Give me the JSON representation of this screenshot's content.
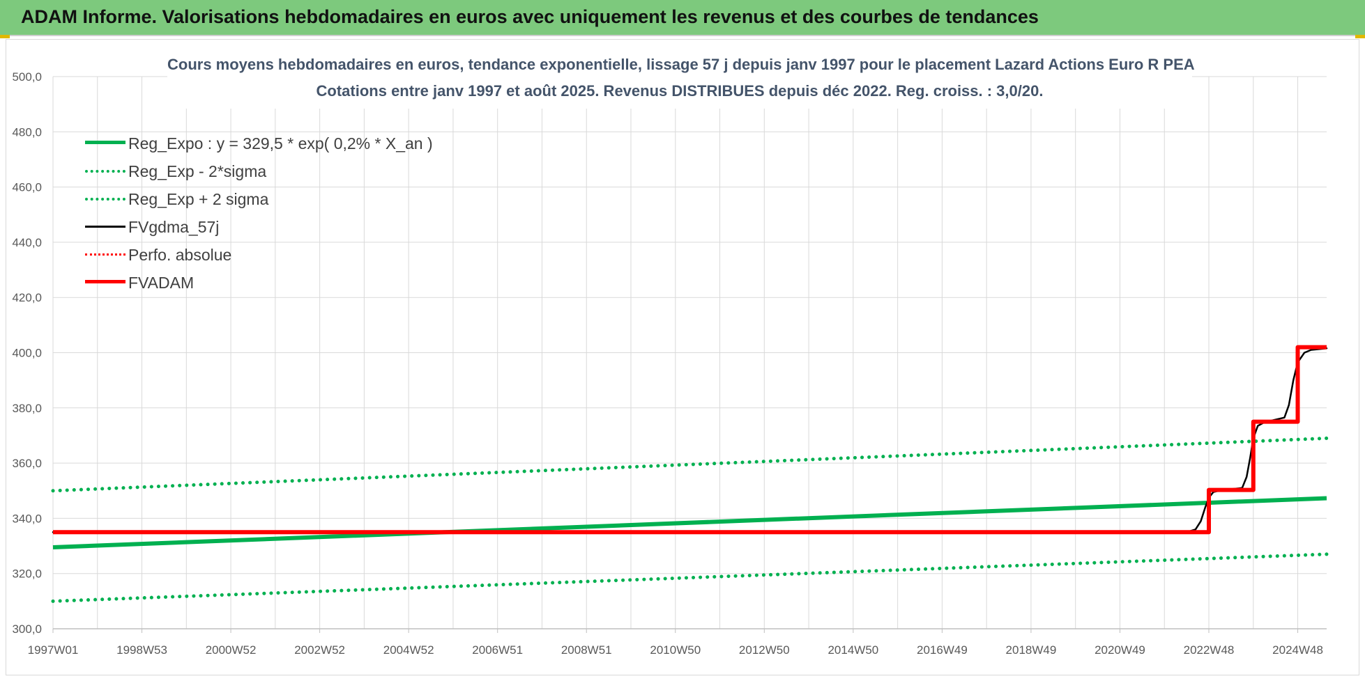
{
  "banner": {
    "title": "ADAM Informe. Valorisations hebdomadaires en euros avec uniquement les revenus et des courbes de tendances"
  },
  "colors": {
    "banner_bg": "#7dc97d",
    "reg_expo": "#00b050",
    "fvgdma": "#000000",
    "fvadam": "#ff0000",
    "perfo": "#ff0000",
    "grid": "#d9d9d9",
    "axis_text": "#595959",
    "title_text": "#44546a"
  },
  "chart_data": {
    "type": "line",
    "title_line1": "Cours moyens hebdomadaires en euros, tendance exponentielle, lissage 57 j depuis janv 1997 pour le placement Lazard Actions Euro R PEA",
    "title_line2": "Cotations entre janv 1997 et août 2025. Revenus DISTRIBUES depuis déc 2022. Reg. croiss. : 3,0/20.",
    "xlabel": "",
    "ylabel": "",
    "ylim": [
      300,
      500
    ],
    "yticks": [
      "500,0",
      "480,0",
      "460,0",
      "440,0",
      "420,0",
      "400,0",
      "380,0",
      "360,0",
      "340,0",
      "320,0",
      "300,0"
    ],
    "x_range": [
      1997.0,
      2025.65
    ],
    "xticks": [
      {
        "label": "1997W01",
        "x": 1997.0
      },
      {
        "label": "1998W53",
        "x": 1999.0
      },
      {
        "label": "2000W52",
        "x": 2001.0
      },
      {
        "label": "2002W52",
        "x": 2003.0
      },
      {
        "label": "2004W52",
        "x": 2005.0
      },
      {
        "label": "2006W51",
        "x": 2007.0
      },
      {
        "label": "2008W51",
        "x": 2009.0
      },
      {
        "label": "2010W50",
        "x": 2011.0
      },
      {
        "label": "2012W50",
        "x": 2013.0
      },
      {
        "label": "2014W50",
        "x": 2015.0
      },
      {
        "label": "2016W49",
        "x": 2017.0
      },
      {
        "label": "2018W49",
        "x": 2019.0
      },
      {
        "label": "2020W49",
        "x": 2021.0
      },
      {
        "label": "2022W48",
        "x": 2023.0
      },
      {
        "label": "2024W48",
        "x": 2025.0
      }
    ],
    "grid": true,
    "legend_position": "top-left",
    "series": [
      {
        "name": "Reg_Expo : y = 329,5 * exp( 0,2% *  X_an )",
        "style": "solid-thick",
        "color": "#00b050",
        "points": [
          [
            1997.0,
            329.5
          ],
          [
            2025.65,
            347.3
          ]
        ]
      },
      {
        "name": "Reg_Exp - 2*sigma",
        "style": "dotted",
        "color": "#00b050",
        "points": [
          [
            1997.0,
            310.0
          ],
          [
            2025.65,
            327.0
          ]
        ]
      },
      {
        "name": "Reg_Exp + 2 sigma",
        "style": "dotted",
        "color": "#00b050",
        "points": [
          [
            1997.0,
            350.0
          ],
          [
            2025.65,
            369.0
          ]
        ]
      },
      {
        "name": "FVgdma_57j",
        "style": "solid",
        "color": "#000000",
        "points": [
          [
            1997.0,
            335.0
          ],
          [
            2022.5,
            335.0
          ],
          [
            2022.7,
            336.0
          ],
          [
            2022.82,
            339.0
          ],
          [
            2022.92,
            344.0
          ],
          [
            2023.0,
            347.5
          ],
          [
            2023.1,
            349.5
          ],
          [
            2023.3,
            350.3
          ],
          [
            2023.75,
            351.0
          ],
          [
            2023.85,
            355.0
          ],
          [
            2023.93,
            362.0
          ],
          [
            2024.0,
            369.0
          ],
          [
            2024.1,
            373.5
          ],
          [
            2024.25,
            374.8
          ],
          [
            2024.7,
            376.5
          ],
          [
            2024.8,
            381.0
          ],
          [
            2024.9,
            390.0
          ],
          [
            2025.0,
            396.5
          ],
          [
            2025.15,
            400.0
          ],
          [
            2025.3,
            401.0
          ],
          [
            2025.65,
            401.6
          ]
        ]
      },
      {
        "name": "Perfo. absolue",
        "style": "dotted",
        "color": "#ff0000",
        "points": []
      },
      {
        "name": "FVADAM",
        "style": "solid-thick",
        "color": "#ff0000",
        "points": [
          [
            1997.0,
            335.0
          ],
          [
            2023.0,
            335.0
          ],
          [
            2023.0,
            350.3
          ],
          [
            2024.0,
            350.3
          ],
          [
            2024.0,
            375.0
          ],
          [
            2025.0,
            375.0
          ],
          [
            2025.0,
            402.0
          ],
          [
            2025.65,
            402.0
          ]
        ]
      }
    ]
  }
}
